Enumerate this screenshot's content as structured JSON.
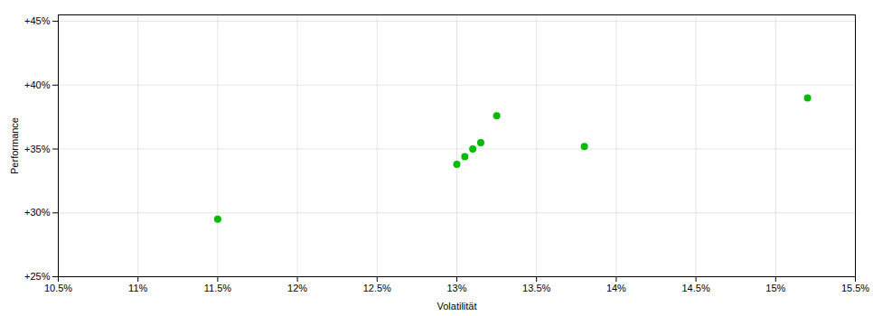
{
  "chart_data": {
    "type": "scatter",
    "xlabel": "Volatilität",
    "ylabel": "Performance",
    "x": [
      0.115,
      0.13,
      0.1305,
      0.131,
      0.1315,
      0.1325,
      0.138,
      0.152
    ],
    "values": [
      0.295,
      0.338,
      0.344,
      0.35,
      0.355,
      0.376,
      0.352,
      0.39
    ],
    "color": "#00bb00",
    "xlim": [
      0.105,
      0.155
    ],
    "ylim": [
      0.25,
      0.455
    ],
    "xticks": [
      {
        "value": 0.105,
        "label": "10.5%"
      },
      {
        "value": 0.11,
        "label": "11%"
      },
      {
        "value": 0.115,
        "label": "11.5%"
      },
      {
        "value": 0.12,
        "label": "12%"
      },
      {
        "value": 0.125,
        "label": "12.5%"
      },
      {
        "value": 0.13,
        "label": "13%"
      },
      {
        "value": 0.135,
        "label": "13.5%"
      },
      {
        "value": 0.14,
        "label": "14%"
      },
      {
        "value": 0.145,
        "label": "14.5%"
      },
      {
        "value": 0.15,
        "label": "15%"
      },
      {
        "value": 0.155,
        "label": "15.5%"
      }
    ],
    "yticks": [
      {
        "value": 0.25,
        "label": "+25%"
      },
      {
        "value": 0.3,
        "label": "+30%"
      },
      {
        "value": 0.35,
        "label": "+35%"
      },
      {
        "value": 0.4,
        "label": "+40%"
      },
      {
        "value": 0.45,
        "label": "+45%"
      }
    ],
    "grid": true
  }
}
